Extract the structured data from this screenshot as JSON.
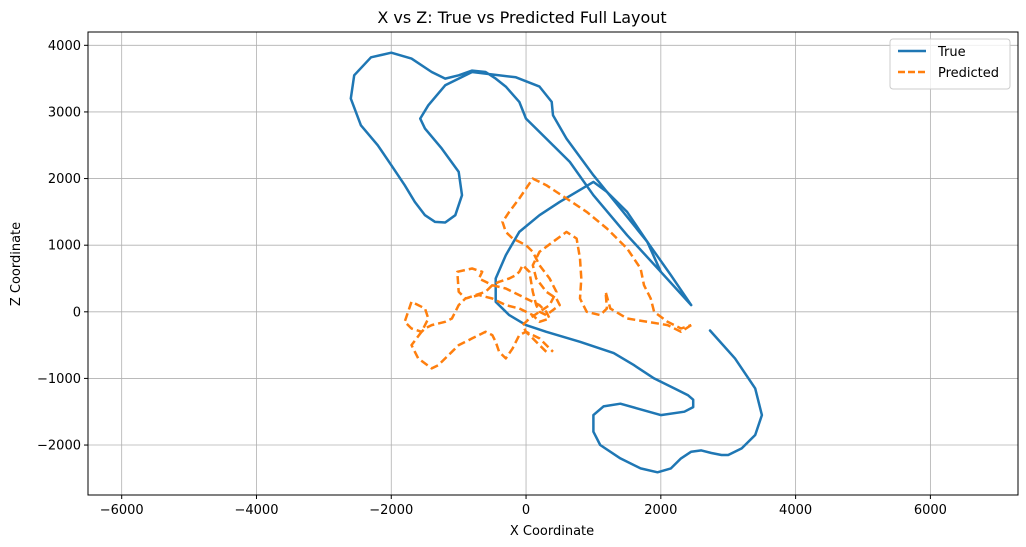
{
  "chart_data": {
    "type": "line",
    "title": "X vs Z: True vs Predicted Full Layout",
    "xlabel": "X Coordinate",
    "ylabel": "Z Coordinate",
    "xlim": [
      -6500,
      7300
    ],
    "ylim": [
      -2750,
      4200
    ],
    "xticks": [
      -6000,
      -4000,
      -2000,
      0,
      2000,
      4000,
      6000
    ],
    "yticks": [
      -2000,
      -1000,
      0,
      1000,
      2000,
      3000,
      4000
    ],
    "grid": true,
    "legend_position": "top-right",
    "series": [
      {
        "name": "True",
        "color": "#1f77b4",
        "style": "solid",
        "x": [
          2450,
          2150,
          1800,
          1400,
          1000,
          600,
          400,
          380,
          200,
          -150,
          -800,
          -1200,
          -1450,
          -1570,
          -1500,
          -1250,
          -1000,
          -950,
          -1050,
          -1200,
          -1350,
          -1500,
          -1650,
          -1800,
          -2000,
          -2200,
          -2450,
          -2600,
          -2550,
          -2300,
          -2000,
          -1700,
          -1400,
          -1200,
          -1000,
          -800,
          -600,
          -450,
          -300,
          -100,
          0,
          300,
          650,
          1000,
          1500,
          2000,
          2450
        ],
        "y": [
          100,
          550,
          1050,
          1550,
          2050,
          2600,
          2950,
          3150,
          3380,
          3520,
          3600,
          3400,
          3100,
          2900,
          2750,
          2450,
          2100,
          1750,
          1450,
          1340,
          1350,
          1450,
          1650,
          1900,
          2200,
          2500,
          2800,
          3200,
          3550,
          3820,
          3890,
          3800,
          3600,
          3500,
          3550,
          3620,
          3600,
          3500,
          3380,
          3150,
          2900,
          2600,
          2250,
          1750,
          1150,
          600,
          100
        ],
        "x2": [
          2730,
          3100,
          3400,
          3500,
          3400,
          3200,
          3000,
          2900,
          2750,
          2600,
          2450,
          2300,
          2150,
          1950,
          1700,
          1400,
          1100,
          1000,
          1000,
          1150,
          1400,
          1650,
          2000,
          2350,
          2480,
          2480,
          2400,
          2200,
          1900,
          1600,
          1300,
          800,
          300,
          0,
          -250,
          -450,
          -450,
          -300,
          -100,
          200,
          500,
          1000,
          1200,
          1500,
          1800,
          2000,
          2000
        ],
        "y2": [
          -280,
          -700,
          -1150,
          -1550,
          -1850,
          -2050,
          -2150,
          -2150,
          -2120,
          -2080,
          -2100,
          -2200,
          -2350,
          -2410,
          -2350,
          -2200,
          -2000,
          -1800,
          -1550,
          -1420,
          -1380,
          -1450,
          -1550,
          -1500,
          -1430,
          -1320,
          -1250,
          -1150,
          -1000,
          -800,
          -620,
          -450,
          -300,
          -200,
          -50,
          150,
          500,
          850,
          1200,
          1450,
          1650,
          1950,
          1800,
          1500,
          1050,
          600,
          600
        ]
      },
      {
        "name": "Predicted",
        "color": "#ff7f0e",
        "style": "dashed",
        "x": [
          2450,
          2300,
          2100,
          1800,
          1500,
          1250,
          1180,
          1200,
          1100,
          900,
          800,
          820,
          800,
          750,
          600,
          400,
          200,
          100,
          150,
          300,
          450,
          500,
          430,
          300,
          200,
          150,
          100,
          50,
          -50,
          -100,
          -150,
          -250,
          -400,
          -500,
          -600,
          -900,
          -1000,
          -1020,
          -800,
          -650,
          -700,
          -600,
          -500,
          -300,
          -200,
          -100,
          0,
          100,
          200,
          250,
          300,
          350,
          200,
          100,
          0,
          -100,
          -300,
          -500,
          -700,
          -900,
          -1000,
          -1050,
          -1100,
          -1200,
          -1400,
          -1500,
          -1550,
          -1700,
          -1800,
          -1750,
          -1700,
          -1600,
          -1500,
          -1450,
          -1550,
          -1700,
          -1600,
          -1400,
          -1300,
          -1200,
          -1100,
          -1000,
          -900,
          -800,
          -700,
          -600,
          -500,
          -450,
          -400,
          -300,
          -200,
          -150,
          -100,
          0,
          100,
          200,
          300,
          400
        ],
        "y": [
          -200,
          -300,
          -200,
          -150,
          -100,
          50,
          300,
          50,
          -50,
          0,
          200,
          500,
          800,
          1100,
          1200,
          1050,
          900,
          700,
          500,
          300,
          200,
          100,
          50,
          -50,
          0,
          100,
          300,
          600,
          700,
          600,
          550,
          500,
          450,
          400,
          300,
          200,
          300,
          600,
          650,
          600,
          500,
          450,
          400,
          350,
          300,
          250,
          200,
          150,
          100,
          50,
          0,
          -100,
          -150,
          -50,
          0,
          50,
          100,
          200,
          250,
          200,
          100,
          0,
          -100,
          -150,
          -200,
          -250,
          -300,
          -250,
          -150,
          0,
          150,
          100,
          50,
          -100,
          -300,
          -500,
          -700,
          -850,
          -800,
          -700,
          -600,
          -500,
          -450,
          -400,
          -350,
          -300,
          -350,
          -450,
          -600,
          -700,
          -550,
          -450,
          -350,
          -300,
          -350,
          -400,
          -500,
          -600
        ],
        "x2": [
          300,
          200,
          100,
          0,
          -50,
          50,
          200,
          350,
          450,
          350,
          200,
          100,
          0,
          -100,
          -200,
          -300,
          -350,
          -250,
          -100,
          100,
          300,
          600,
          900,
          1200,
          1500,
          1700,
          1750,
          1850,
          1900,
          2100,
          2300,
          2450
        ],
        "y2": [
          -600,
          -500,
          -400,
          -300,
          -200,
          -100,
          0,
          100,
          300,
          500,
          700,
          900,
          1000,
          1050,
          1100,
          1200,
          1350,
          1500,
          1700,
          2000,
          1900,
          1700,
          1500,
          1250,
          950,
          650,
          400,
          200,
          0,
          -150,
          -250,
          -200
        ]
      }
    ]
  }
}
